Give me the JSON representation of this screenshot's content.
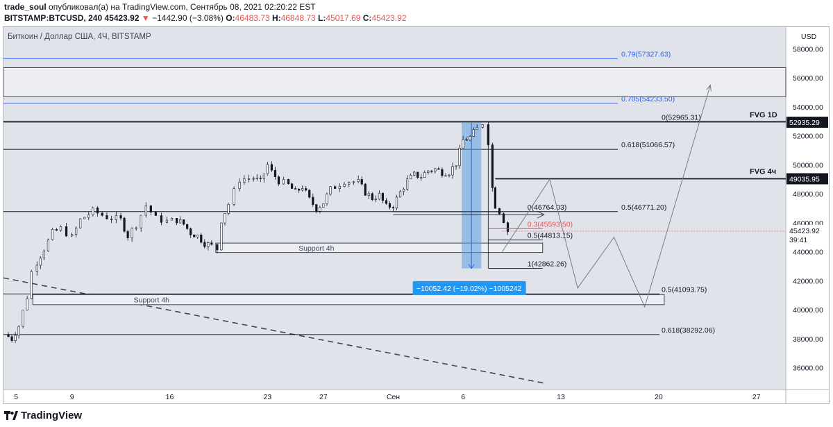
{
  "header": {
    "author": "trade_soul",
    "published": "опубликовал(а) на TradingView.com, Сентябрь 08, 2021 02:20:22 EST",
    "symbol": "BITSTAMP:BTCUSD, 240",
    "last": "45423.92",
    "change_arrow": "▼",
    "change": "−1442.90 (−3.08%)",
    "o_label": "O:",
    "o": "46483.73",
    "h_label": "H:",
    "h": "46848.73",
    "l_label": "L:",
    "l": "45017.69",
    "c_label": "C:",
    "c": "45423.92"
  },
  "footer": {
    "brand": "TradingView",
    "logo_icon": "tradingview-logo-icon"
  },
  "chart_data": {
    "type": "candlestick",
    "title": "Биткоин / Доллар США, 4Ч, BITSTAMP",
    "currency": "USD",
    "ylim": [
      34500,
      59500
    ],
    "y_ticks": [
      36000,
      38000,
      40000,
      42000,
      44000,
      46000,
      48000,
      50000,
      52000,
      54000,
      56000,
      58000
    ],
    "x_ticks": [
      {
        "label": "5",
        "day": 5
      },
      {
        "label": "9",
        "day": 9
      },
      {
        "label": "16",
        "day": 16
      },
      {
        "label": "23",
        "day": 23
      },
      {
        "label": "27",
        "day": 27
      },
      {
        "label": "Сен",
        "day": 32
      },
      {
        "label": "6",
        "day": 37
      },
      {
        "label": "13",
        "day": 44
      },
      {
        "label": "20",
        "day": 51
      },
      {
        "label": "27",
        "day": 58
      }
    ],
    "xlim": [
      4.1,
      60.1
    ],
    "price_path": [
      [
        4.2,
        38300
      ],
      [
        4.7,
        38000
      ],
      [
        5.2,
        38900
      ],
      [
        5.5,
        39900
      ],
      [
        5.8,
        40900
      ],
      [
        6.1,
        42600
      ],
      [
        6.5,
        43300
      ],
      [
        7,
        44200
      ],
      [
        7.6,
        45300
      ],
      [
        8.2,
        45600
      ],
      [
        9,
        45000
      ],
      [
        9.6,
        46200
      ],
      [
        10.5,
        46800
      ],
      [
        11.5,
        46400
      ],
      [
        12.5,
        46200
      ],
      [
        13,
        45100
      ],
      [
        13.6,
        45900
      ],
      [
        14.3,
        47200
      ],
      [
        15,
        46300
      ],
      [
        15.8,
        46100
      ],
      [
        16.5,
        46200
      ],
      [
        17,
        45900
      ],
      [
        17.5,
        45300
      ],
      [
        18,
        45100
      ],
      [
        18.5,
        44600
      ],
      [
        19,
        44400
      ],
      [
        19.4,
        44200
      ],
      [
        19.7,
        46200
      ],
      [
        20.2,
        47300
      ],
      [
        21,
        49000
      ],
      [
        22,
        49100
      ],
      [
        22.5,
        48800
      ],
      [
        23,
        50000
      ],
      [
        23.3,
        49500
      ],
      [
        23.8,
        48900
      ],
      [
        24.5,
        48600
      ],
      [
        25,
        48100
      ],
      [
        25.5,
        48500
      ],
      [
        26,
        47600
      ],
      [
        26.5,
        47000
      ],
      [
        27,
        47400
      ],
      [
        27.5,
        48300
      ],
      [
        28.5,
        48900
      ],
      [
        29.5,
        48800
      ],
      [
        30,
        48100
      ],
      [
        30.5,
        47700
      ],
      [
        31,
        47900
      ],
      [
        31.5,
        47100
      ],
      [
        32,
        47200
      ],
      [
        32.5,
        48100
      ],
      [
        33,
        48900
      ],
      [
        33.5,
        49300
      ],
      [
        34,
        49200
      ],
      [
        34.5,
        49600
      ],
      [
        35,
        49700
      ],
      [
        35.5,
        49500
      ],
      [
        36,
        49500
      ],
      [
        36.5,
        50100
      ],
      [
        37,
        51700
      ],
      [
        37.5,
        51900
      ],
      [
        38,
        52500
      ],
      [
        38.4,
        52900
      ],
      [
        38.8,
        51600
      ],
      [
        39.1,
        48400
      ],
      [
        39.3,
        47200
      ],
      [
        39.6,
        46800
      ],
      [
        39.9,
        46200
      ],
      [
        40.2,
        45424
      ]
    ],
    "fib_levels": [
      {
        "label": "0.79(57327.63)",
        "price": 57327.63,
        "color": "#2962ff"
      },
      {
        "label": "0.705(54233.50)",
        "price": 54233.5,
        "color": "#2962ff"
      },
      {
        "label": "0(52965.31)",
        "price": 52965.31,
        "color": "#131722"
      },
      {
        "label": "0.618(51066.57)",
        "price": 51066.57,
        "color": "#131722"
      },
      {
        "label": "0.5(46771.20)",
        "price": 46771.2,
        "color": "#131722"
      },
      {
        "label": "0.5(41093.75)",
        "price": 41093.75,
        "color": "#131722"
      },
      {
        "label": "0.618(38292.06)",
        "price": 38292.06,
        "color": "#131722"
      }
    ],
    "local_fib": [
      {
        "label": "0(46764.03)",
        "price": 46764.03,
        "color": "#131722"
      },
      {
        "label": "0.3(45593.50)",
        "price": 45593.5,
        "color": "#ef5350"
      },
      {
        "label": "0.5(44813.15)",
        "price": 44813.15,
        "color": "#131722"
      },
      {
        "label": "1(42862.26)",
        "price": 42862.26,
        "color": "#131722"
      }
    ],
    "fvg": [
      {
        "label": "FVG 1D",
        "price": 52935.29,
        "tag": "52935.29"
      },
      {
        "label": "FVG 4ч",
        "price": 49035.95,
        "tag": "49035.95"
      }
    ],
    "zones": [
      {
        "label": "Support 4h",
        "top": 44600,
        "bottom": 43950
      },
      {
        "label": "Support 4h",
        "top": 41050,
        "bottom": 40350
      }
    ],
    "measure": {
      "label": "−10052.42 (−19.02%) −1005242",
      "from": 52900,
      "to": 42850
    },
    "current_price": {
      "value": "45423.92",
      "countdown": "39:41"
    },
    "projection": [
      [
        39.8,
        44000
      ],
      [
        43.2,
        49000
      ],
      [
        45.2,
        41500
      ],
      [
        47.8,
        45000
      ],
      [
        50,
        40200
      ],
      [
        54.7,
        55500
      ]
    ]
  }
}
